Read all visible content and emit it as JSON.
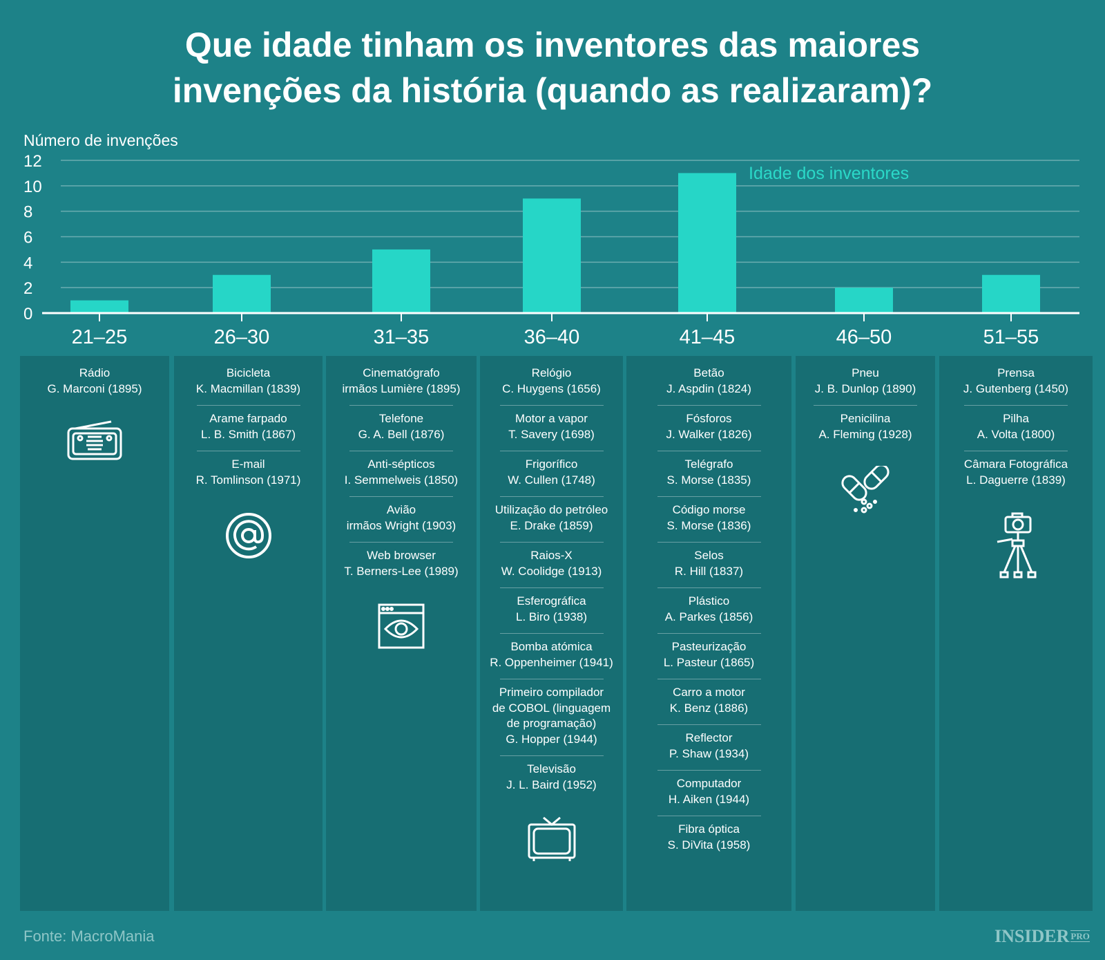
{
  "title_line1": "Que idade tinham os inventores das maiores",
  "title_line2": "invenções da história (quando as realizaram)?",
  "chart_data": {
    "type": "bar",
    "ylabel": "Número de invenções",
    "categories": [
      "21–25",
      "26–30",
      "31–35",
      "36–40",
      "41–45",
      "46–50",
      "51–55"
    ],
    "series": [
      {
        "name": "Idade dos inventores",
        "values": [
          1,
          3,
          5,
          9,
          11,
          2,
          3
        ]
      }
    ],
    "ylim": [
      0,
      12
    ],
    "yticks": [
      0,
      2,
      4,
      6,
      8,
      10,
      12
    ],
    "grid": true,
    "legend": "top-right",
    "colors": {
      "bar": "#26d6c7",
      "background": "#1d8288",
      "panel": "#176e73"
    }
  },
  "panels": [
    {
      "icon": "radio-icon",
      "entries": [
        [
          "Rádio",
          "G. Marconi (1895)"
        ]
      ]
    },
    {
      "icon": "at-sign-icon",
      "entries": [
        [
          "Bicicleta",
          "K. Macmillan (1839)"
        ],
        [
          "Arame farpado",
          "L. B. Smith (1867)"
        ],
        [
          "E-mail",
          "R. Tomlinson (1971)"
        ]
      ]
    },
    {
      "icon": "browser-eye-icon",
      "entries": [
        [
          "Cinematógrafo",
          "irmãos Lumière (1895)"
        ],
        [
          "Telefone",
          "G. A. Bell (1876)"
        ],
        [
          "Anti-sépticos",
          "I. Semmelweis (1850)"
        ],
        [
          "Avião",
          "irmãos Wright (1903)"
        ],
        [
          "Web browser",
          "T. Berners-Lee (1989)"
        ]
      ]
    },
    {
      "icon": "television-icon",
      "entries": [
        [
          "Relógio",
          "C. Huygens (1656)"
        ],
        [
          "Motor a vapor",
          "T. Savery (1698)"
        ],
        [
          "Frigorífico",
          "W. Cullen (1748)"
        ],
        [
          "Utilização do petróleo",
          "E. Drake (1859)"
        ],
        [
          "Raios-X",
          "W. Coolidge (1913)"
        ],
        [
          "Esferográfica",
          "L. Biro (1938)"
        ],
        [
          "Bomba atómica",
          "R. Oppenheimer (1941)"
        ],
        [
          "Primeiro compilador",
          "de COBOL (linguagem",
          "de programação)",
          "G. Hopper (1944)"
        ],
        [
          "Televisão",
          "J. L. Baird (1952)"
        ]
      ]
    },
    {
      "icon": "",
      "entries": [
        [
          "Betão",
          "J. Aspdin (1824)"
        ],
        [
          "Fósforos",
          "J. Walker (1826)"
        ],
        [
          "Telégrafo",
          "S. Morse (1835)"
        ],
        [
          "Código morse",
          "S. Morse (1836)"
        ],
        [
          "Selos",
          "R. Hill (1837)"
        ],
        [
          "Plástico",
          "A. Parkes (1856)"
        ],
        [
          "Pasteurização",
          "L. Pasteur (1865)"
        ],
        [
          "Carro a motor",
          "K. Benz (1886)"
        ],
        [
          "Reflector",
          "P. Shaw (1934)"
        ],
        [
          "Computador",
          "H. Aiken (1944)"
        ],
        [
          "Fibra óptica",
          "S. DiVita (1958)"
        ]
      ]
    },
    {
      "icon": "pills-icon",
      "entries": [
        [
          "Pneu",
          "J. B. Dunlop (1890)"
        ],
        [
          "Penicilina",
          "A. Fleming (1928)"
        ]
      ]
    },
    {
      "icon": "camera-tripod-icon",
      "entries": [
        [
          "Prensa",
          "J. Gutenberg (1450)"
        ],
        [
          "Pilha",
          "A. Volta (1800)"
        ],
        [
          "Câmara Fotográfica",
          "L. Daguerre (1839)"
        ]
      ]
    }
  ],
  "source": "Fonte: MacroMania",
  "logo": "INSIDER PRO"
}
